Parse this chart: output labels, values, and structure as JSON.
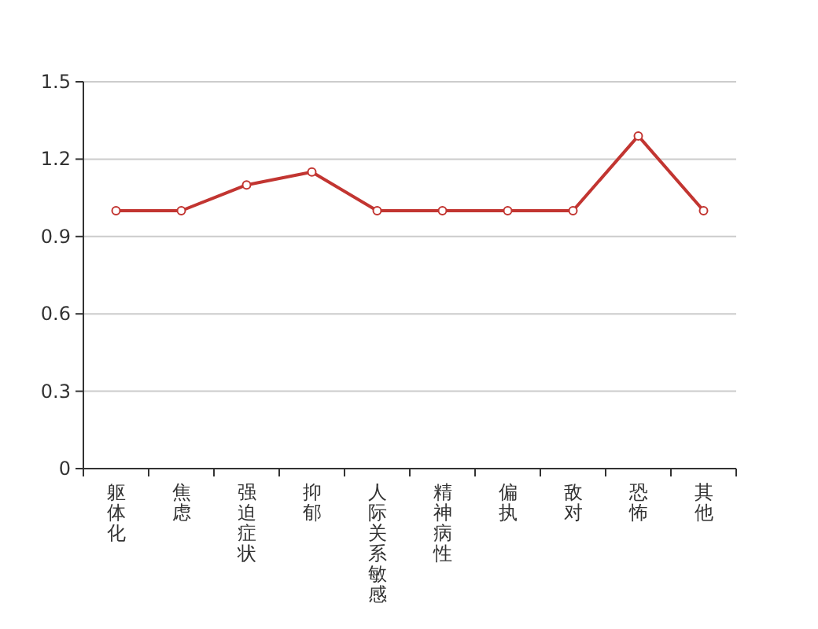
{
  "chart_data": {
    "type": "line",
    "categories": [
      "躯体化",
      "焦虑",
      "强迫症状",
      "抑郁",
      "人际关系敏感",
      "精神病性",
      "偏执",
      "敌对",
      "恐怖",
      "其他"
    ],
    "series": [
      {
        "color": "#c23531",
        "values": [
          1,
          1,
          1.1,
          1.15,
          1,
          1,
          1,
          1,
          1.29,
          1
        ]
      }
    ],
    "ylim": [
      0,
      1.5
    ],
    "yticks": [
      0,
      0.3,
      0.6,
      0.9,
      1.2,
      1.5
    ],
    "grid": "y",
    "marker": "circle",
    "line_style": "solid"
  }
}
